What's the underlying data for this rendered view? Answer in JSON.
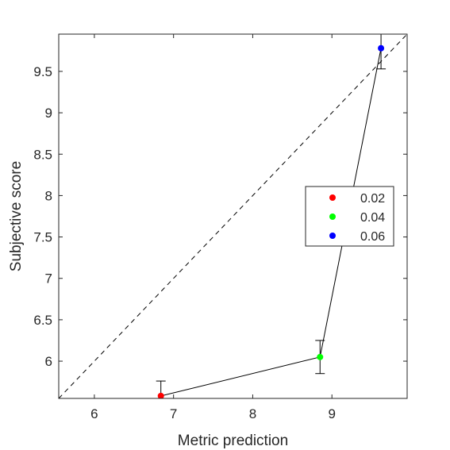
{
  "chart_data": {
    "type": "scatter",
    "title": "",
    "xlabel": "Metric prediction",
    "ylabel": "Subjective score",
    "xlim": [
      5.55,
      9.95
    ],
    "ylim": [
      5.55,
      9.95
    ],
    "xticks": [
      6,
      7,
      8,
      9
    ],
    "xtick_labels": [
      "6",
      "7",
      "8",
      "9"
    ],
    "yticks": [
      6,
      6.5,
      7,
      7.5,
      8,
      8.5,
      9,
      9.5
    ],
    "ytick_labels": [
      "6",
      "6.5",
      "7",
      "7.5",
      "8",
      "8.5",
      "9",
      "9.5"
    ],
    "grid": false,
    "legend_position": "right",
    "reference_line": {
      "style": "dashed",
      "color": "#000000",
      "from": [
        5.55,
        5.55
      ],
      "to": [
        9.95,
        9.95
      ]
    },
    "connecting_line_color": "#000000",
    "points": [
      {
        "name": "0.02",
        "x": 6.84,
        "y": 5.58,
        "err_low": 5.55,
        "err_high": 5.76,
        "color": "#ff0000"
      },
      {
        "name": "0.04",
        "x": 8.85,
        "y": 6.05,
        "err_low": 5.85,
        "err_high": 6.25,
        "color": "#00ff00"
      },
      {
        "name": "0.06",
        "x": 9.62,
        "y": 9.78,
        "err_low": 9.53,
        "err_high": 10.05,
        "color": "#0000ff"
      }
    ]
  }
}
